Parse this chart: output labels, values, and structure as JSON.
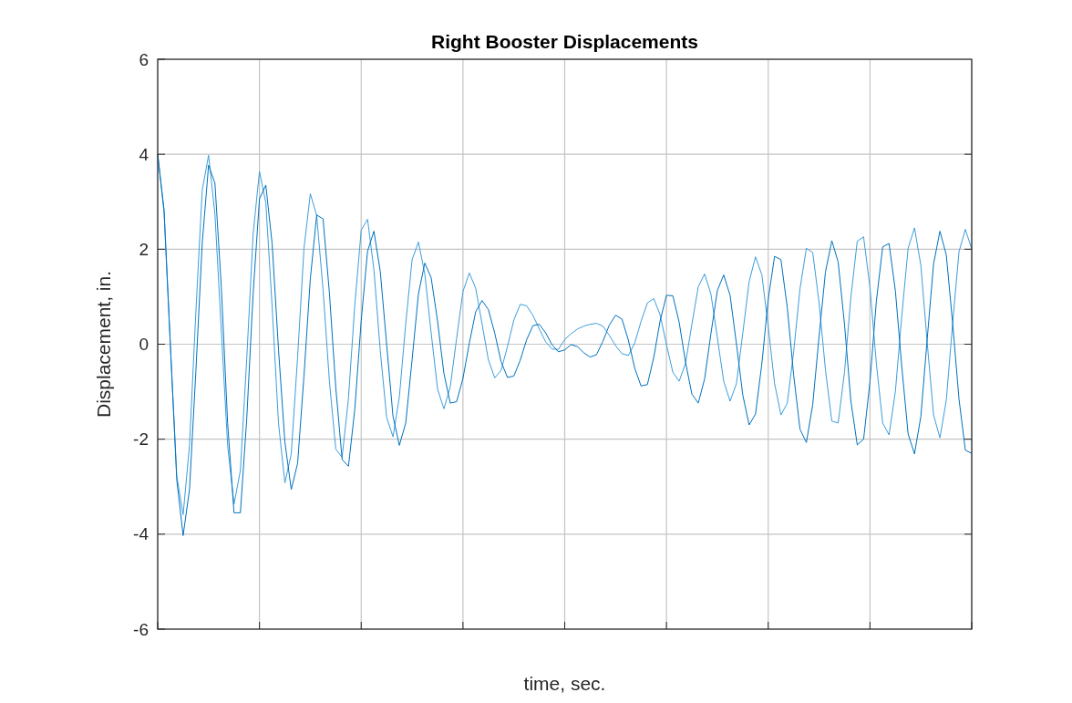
{
  "chart_data": {
    "type": "line",
    "title": "Right Booster Displacements",
    "xlabel": "time, sec.",
    "ylabel": "Displacement, in.",
    "categories": [
      null,
      null,
      null,
      null,
      null,
      null,
      null,
      null,
      null,
      null,
      null,
      null,
      null,
      null,
      null,
      null,
      null,
      null,
      null,
      null,
      null,
      null,
      null,
      null,
      null,
      null,
      null,
      null,
      null,
      null,
      null,
      null,
      null,
      null,
      null,
      null,
      null,
      null,
      null,
      null,
      null,
      null,
      null,
      null,
      null,
      null,
      null,
      null,
      null,
      null,
      null,
      null,
      null,
      null,
      null,
      null,
      null,
      null,
      null,
      null,
      null,
      null,
      null,
      null,
      null,
      null,
      null,
      null,
      null,
      null,
      null,
      null,
      null,
      null,
      null,
      null,
      null,
      null,
      null,
      null,
      null,
      null,
      null,
      null,
      null,
      null,
      null,
      null,
      null,
      null,
      null,
      null,
      null,
      null,
      null,
      null,
      null,
      null,
      null,
      null,
      null,
      null,
      null,
      null,
      null,
      null,
      null,
      null,
      null,
      null,
      null,
      null,
      null,
      null,
      null,
      null,
      null,
      null,
      null,
      null,
      null,
      null,
      null,
      null,
      null,
      null,
      null,
      null,
      null
    ],
    "ylim": [
      -6,
      6
    ],
    "yticks": [
      -6,
      -4,
      -2,
      0,
      2,
      4,
      6
    ],
    "grid": true,
    "line_style": "solid",
    "series": [
      {
        "color": "#3d9ddb",
        "values": [
          4,
          2.77,
          -0.05,
          -2.78,
          -3.59,
          -2.13,
          0.67,
          3.24,
          3.98,
          2.74,
          0.3,
          -2.14,
          -3.37,
          -2.66,
          -0.31,
          2.31,
          3.64,
          2.98,
          0.78,
          -1.67,
          -2.92,
          -2.31,
          -0.27,
          2.01,
          3.17,
          2.71,
          1.15,
          -0.78,
          -2.21,
          -2.38,
          -1.13,
          0.84,
          2.4,
          2.63,
          1.57,
          -0.14,
          -1.54,
          -1.95,
          -1.11,
          0.43,
          1.78,
          2.15,
          1.48,
          0.24,
          -0.94,
          -1.36,
          -0.9,
          0.12,
          1.11,
          1.5,
          1.18,
          0.43,
          -0.33,
          -0.71,
          -0.55,
          -0.05,
          0.51,
          0.84,
          0.81,
          0.61,
          0.32,
          0.05,
          -0.1,
          -0.11,
          0.1,
          0.22,
          0.32,
          0.38,
          0.42,
          0.44,
          0.38,
          0.19,
          -0.03,
          -0.2,
          -0.24,
          0.02,
          0.48,
          0.87,
          0.96,
          0.62,
          -0.01,
          -0.59,
          -0.78,
          -0.4,
          0.42,
          1.21,
          1.48,
          1.05,
          0.14,
          -0.78,
          -1.2,
          -0.83,
          0.23,
          1.32,
          1.84,
          1.46,
          0.37,
          -0.83,
          -1.49,
          -1.24,
          -0.16,
          1.17,
          2.02,
          1.93,
          0.87,
          -0.54,
          -1.62,
          -1.66,
          -0.58,
          0.99,
          2.17,
          2.26,
          1.19,
          -0.4,
          -1.66,
          -1.91,
          -0.99,
          0.59,
          2.02,
          2.45,
          1.66,
          0.03,
          -1.49,
          -1.97,
          -1.18,
          0.44,
          1.95,
          2.42,
          2.0
        ]
      },
      {
        "color": "#0072bd",
        "values": [
          4,
          2.83,
          -0.02,
          -2.86,
          -4.03,
          -3.06,
          -0.58,
          2.12,
          3.77,
          3.39,
          1.21,
          -1.67,
          -3.55,
          -3.55,
          -1.57,
          1.05,
          3.06,
          3.35,
          2.11,
          -0.12,
          -2.06,
          -3.06,
          -2.51,
          -0.67,
          1.38,
          2.72,
          2.64,
          1.08,
          -0.91,
          -2.43,
          -2.57,
          -1.36,
          0.5,
          1.96,
          2.38,
          1.53,
          0.0,
          -1.52,
          -2.13,
          -1.66,
          -0.33,
          1.06,
          1.71,
          1.4,
          0.49,
          -0.61,
          -1.24,
          -1.21,
          -0.72,
          0.02,
          0.68,
          0.92,
          0.73,
          0.23,
          -0.37,
          -0.7,
          -0.67,
          -0.34,
          0.09,
          0.39,
          0.42,
          0.24,
          -0.01,
          -0.16,
          -0.12,
          -0.01,
          -0.05,
          -0.18,
          -0.27,
          -0.22,
          0.06,
          0.4,
          0.61,
          0.53,
          0.09,
          -0.5,
          -0.88,
          -0.85,
          -0.28,
          0.49,
          1.03,
          1.02,
          0.46,
          -0.38,
          -1.05,
          -1.24,
          -0.73,
          0.23,
          1.13,
          1.46,
          1.03,
          0.01,
          -1.07,
          -1.7,
          -1.47,
          -0.41,
          0.95,
          1.85,
          1.78,
          0.77,
          -0.65,
          -1.79,
          -2.07,
          -1.27,
          0.17,
          1.52,
          2.18,
          1.73,
          0.41,
          -1.2,
          -2.12,
          -2.0,
          -0.79,
          0.9,
          2.05,
          2.12,
          1.12,
          -0.47,
          -1.89,
          -2.31,
          -1.52,
          0.11,
          1.69,
          2.38,
          1.88,
          0.44,
          -1.16,
          -2.23,
          -2.3
        ]
      }
    ]
  }
}
